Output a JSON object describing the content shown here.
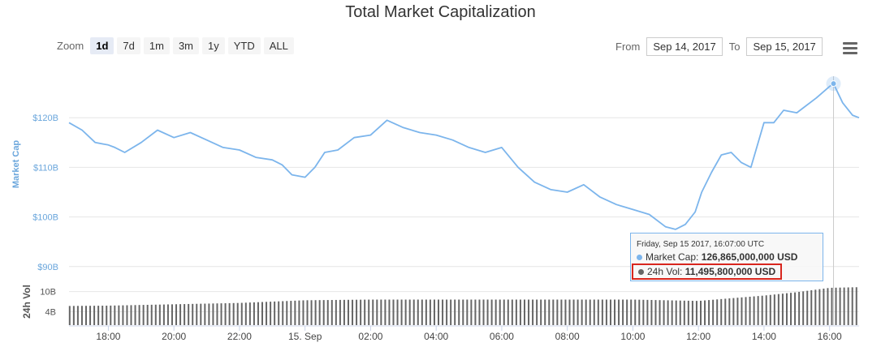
{
  "title": "Total Market Capitalization",
  "zoom": {
    "label": "Zoom",
    "buttons": [
      "1d",
      "7d",
      "1m",
      "3m",
      "1y",
      "YTD",
      "ALL"
    ],
    "active": "1d"
  },
  "range": {
    "from_label": "From",
    "from_value": "Sep 14, 2017",
    "to_label": "To",
    "to_value": "Sep 15, 2017"
  },
  "menu_icon": "hamburger-menu-icon",
  "tooltip": {
    "date": "Friday, Sep 15 2017, 16:07:00 UTC",
    "mc_label": "Market Cap:",
    "mc_value": "126,865,000,000 USD",
    "vol_label": "24h Vol:",
    "vol_value": "11,495,800,000 USD"
  },
  "colors": {
    "line": "#7cb5ec",
    "volume": "#555555",
    "highlight": "#d8261e"
  },
  "chart_data": {
    "type": "line",
    "title": "Total Market Capitalization",
    "ylabel": "Market Cap",
    "y2label": "24h Vol",
    "ylim": [
      88,
      130
    ],
    "yticks": [
      "$90B",
      "$100B",
      "$110B",
      "$120B"
    ],
    "ytick_values": [
      90,
      100,
      110,
      120
    ],
    "vol_ylim": [
      0,
      14
    ],
    "vol_ticks": [
      "4B",
      "10B"
    ],
    "vol_tick_values": [
      4,
      10
    ],
    "xlim": [
      16.8,
      40.9
    ],
    "xticks": [
      "18:00",
      "20:00",
      "22:00",
      "15. Sep",
      "02:00",
      "04:00",
      "06:00",
      "08:00",
      "10:00",
      "12:00",
      "14:00",
      "16:00"
    ],
    "xtick_values": [
      18,
      20,
      22,
      24,
      26,
      28,
      30,
      32,
      34,
      36,
      38,
      40
    ],
    "series": [
      {
        "name": "Market Cap",
        "unit": "billion USD",
        "x": [
          16.8,
          17.2,
          17.6,
          18.0,
          18.2,
          18.5,
          19.0,
          19.5,
          20.0,
          20.5,
          21.0,
          21.5,
          22.0,
          22.5,
          23.0,
          23.3,
          23.6,
          24.0,
          24.3,
          24.6,
          25.0,
          25.5,
          26.0,
          26.5,
          27.0,
          27.5,
          28.0,
          28.5,
          29.0,
          29.5,
          30.0,
          30.5,
          31.0,
          31.5,
          32.0,
          32.5,
          33.0,
          33.5,
          34.0,
          34.5,
          35.0,
          35.3,
          35.6,
          35.9,
          36.1,
          36.4,
          36.7,
          37.0,
          37.3,
          37.6,
          38.0,
          38.3,
          38.6,
          39.0,
          39.3,
          39.6,
          40.0,
          40.12,
          40.4,
          40.7,
          40.9
        ],
        "y": [
          119.0,
          117.5,
          115.0,
          114.5,
          114.0,
          113.0,
          115.0,
          117.5,
          116.0,
          117.0,
          115.5,
          114.0,
          113.5,
          112.0,
          111.5,
          110.5,
          108.5,
          108.0,
          110.0,
          113.0,
          113.5,
          116.0,
          116.5,
          119.5,
          118.0,
          117.0,
          116.5,
          115.5,
          114.0,
          113.0,
          114.0,
          110.0,
          107.0,
          105.5,
          105.0,
          106.5,
          104.0,
          102.5,
          101.5,
          100.5,
          98.0,
          97.5,
          98.5,
          101.0,
          105.0,
          109.0,
          112.5,
          113.0,
          111.0,
          110.0,
          119.0,
          119.0,
          121.5,
          121.0,
          122.5,
          124.0,
          126.3,
          126.865,
          123.0,
          120.5,
          120.0
        ]
      },
      {
        "name": "24h Vol",
        "unit": "billion USD",
        "x": [
          16.8,
          18.0,
          20.0,
          22.0,
          23.0,
          24.0,
          26.0,
          28.0,
          30.0,
          32.0,
          34.0,
          36.0,
          37.0,
          38.0,
          39.0,
          40.0,
          40.9
        ],
        "y": [
          5.7,
          5.8,
          6.2,
          6.6,
          7.0,
          7.4,
          7.6,
          7.6,
          7.6,
          7.6,
          7.6,
          7.2,
          8.0,
          8.8,
          9.8,
          11.1,
          11.3
        ]
      }
    ],
    "highlight": {
      "x": 40.12,
      "mc": 126.865,
      "vol": 11.4958
    },
    "grid": true,
    "legend": "none"
  }
}
